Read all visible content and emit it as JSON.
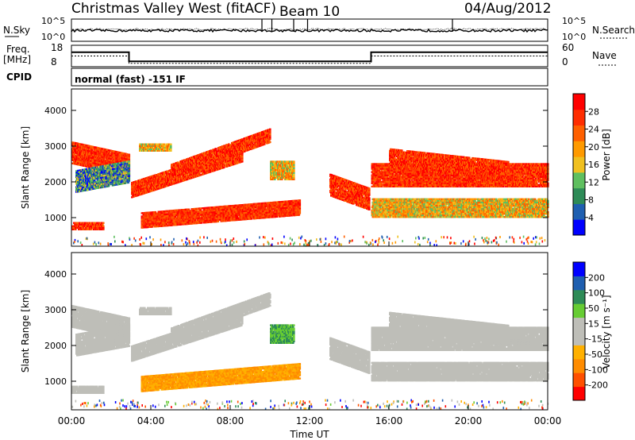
{
  "header": {
    "radar": "Christmas Valley West (fitACF)",
    "beam": "Beam 10",
    "date": "04/Aug/2012"
  },
  "noise_panel": {
    "left_label": "N.Sky",
    "right_label": "N.Search",
    "left_ticks": [
      "10^5",
      "10^0"
    ],
    "right_ticks": [
      "10^5",
      "10^0"
    ]
  },
  "freq_panel": {
    "left_label_1": "Freq.",
    "left_label_2": "[MHz]",
    "right_label": "Nave",
    "left_ticks": [
      "18",
      "8"
    ],
    "right_ticks": [
      "60",
      "0"
    ],
    "cpid_label": "CPID",
    "cpid_text": "normal (fast) -151 IF"
  },
  "colors": {
    "power_scale": [
      "#0000ff",
      "#1f5fb0",
      "#2e8b57",
      "#5fbf5f",
      "#f0c020",
      "#ff9a00",
      "#ff6000",
      "#ff2d00",
      "#ff0000"
    ],
    "velocity_scale": [
      "#ff0000",
      "#ff5000",
      "#ff8c00",
      "#ffb000",
      "#bebeb8",
      "#bebeb8",
      "#66cc33",
      "#2e8b57",
      "#1f5fb0",
      "#0000ff"
    ],
    "ground_scatter": "#bebeb8"
  },
  "chart_data": [
    {
      "type": "heatmap",
      "name": "power",
      "ylabel": "Slant Range [km]",
      "ylim": [
        200,
        4600
      ],
      "yticks": [
        1000,
        2000,
        3000,
        4000
      ],
      "xlim_hours": [
        0,
        24
      ],
      "colorbar": {
        "label": "Power [dB]",
        "range": [
          0,
          32
        ],
        "ticks": [
          4,
          8,
          12,
          16,
          20,
          24,
          28
        ]
      }
    },
    {
      "type": "heatmap",
      "name": "velocity",
      "ylabel": "Slant Range [km]",
      "ylim": [
        200,
        4600
      ],
      "yticks": [
        1000,
        2000,
        3000,
        4000
      ],
      "xlim_hours": [
        0,
        24
      ],
      "colorbar": {
        "label": "Velocity [m s⁻¹]",
        "ticks": [
          "200",
          "100",
          "50",
          "15",
          "-15",
          "-50",
          "-100",
          "-200"
        ]
      }
    }
  ],
  "xaxis": {
    "label": "Time UT",
    "ticks": [
      "00:00",
      "04:00",
      "08:00",
      "12:00",
      "16:00",
      "20:00",
      "00:00"
    ]
  }
}
